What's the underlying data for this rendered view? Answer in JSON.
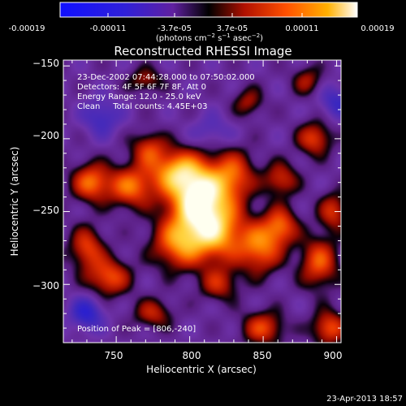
{
  "chart_data": {
    "type": "heatmap",
    "title": "Reconstructed RHESSI Image",
    "xlabel": "Heliocentric X (arcsec)",
    "ylabel": "Heliocentric Y (arcsec)",
    "x_ticks": [
      750,
      800,
      850,
      900
    ],
    "y_ticks": [
      -150,
      -200,
      -250,
      -300
    ],
    "xlim": [
      714,
      903
    ],
    "ylim": [
      -340,
      -146
    ],
    "colorbar": {
      "ticks": [
        "-0.00019",
        "-0.00011",
        "-3.7e-05",
        "3.7e-05",
        "0.00011",
        "0.00019"
      ],
      "range": [
        -0.00019,
        0.00019
      ],
      "units": "(photons cm⁻² s⁻¹ asec⁻²)",
      "units_html": "(photons cm<tspan baseline-shift='super' font-size='7'>−2</tspan> s<tspan baseline-shift='super' font-size='7'>−1</tspan> asec<tspan baseline-shift='super' font-size='7'>−2</tspan>)"
    },
    "annotations": [
      "23-Dec-2002 07:44:28.000 to 07:50:02.000",
      "Detectors: 4F 5F 6F 7F 8F, Att 0",
      "Energy Range: 12.0 - 25.0 keV",
      "Clean     Total counts: 4.45E+03"
    ],
    "peak_label": "Position of Peak = [806,-240]",
    "peak": [
      806,
      -240
    ],
    "sources": [
      {
        "x": 806,
        "y": -240,
        "amp": 1.0,
        "sx": 14,
        "sy": 16
      },
      {
        "x": 790,
        "y": -222,
        "amp": 0.55,
        "sx": 12,
        "sy": 10
      },
      {
        "x": 818,
        "y": -265,
        "amp": 0.65,
        "sx": 14,
        "sy": 14
      },
      {
        "x": 792,
        "y": -272,
        "amp": 0.55,
        "sx": 12,
        "sy": 12
      },
      {
        "x": 830,
        "y": -225,
        "amp": 0.45,
        "sx": 10,
        "sy": 12
      },
      {
        "x": 760,
        "y": -233,
        "amp": 0.55,
        "sx": 11,
        "sy": 10
      },
      {
        "x": 733,
        "y": -230,
        "amp": 0.55,
        "sx": 9,
        "sy": 9
      },
      {
        "x": 745,
        "y": -295,
        "amp": 0.5,
        "sx": 10,
        "sy": 9
      },
      {
        "x": 730,
        "y": -275,
        "amp": 0.45,
        "sx": 8,
        "sy": 10
      },
      {
        "x": 772,
        "y": -207,
        "amp": 0.4,
        "sx": 8,
        "sy": 8
      },
      {
        "x": 848,
        "y": -275,
        "amp": 0.55,
        "sx": 10,
        "sy": 12
      },
      {
        "x": 862,
        "y": -260,
        "amp": 0.5,
        "sx": 8,
        "sy": 9
      },
      {
        "x": 862,
        "y": -228,
        "amp": 0.4,
        "sx": 8,
        "sy": 8
      },
      {
        "x": 888,
        "y": -285,
        "amp": 0.5,
        "sx": 9,
        "sy": 12
      },
      {
        "x": 885,
        "y": -200,
        "amp": 0.45,
        "sx": 8,
        "sy": 8
      },
      {
        "x": 898,
        "y": -250,
        "amp": 0.4,
        "sx": 7,
        "sy": 9
      },
      {
        "x": 840,
        "y": -175,
        "amp": 0.3,
        "sx": 7,
        "sy": 7
      },
      {
        "x": 770,
        "y": -160,
        "amp": 0.3,
        "sx": 8,
        "sy": 6
      },
      {
        "x": 775,
        "y": -320,
        "amp": 0.35,
        "sx": 9,
        "sy": 7
      },
      {
        "x": 850,
        "y": -330,
        "amp": 0.45,
        "sx": 10,
        "sy": 8
      },
      {
        "x": 895,
        "y": -330,
        "amp": 0.5,
        "sx": 8,
        "sy": 8
      },
      {
        "x": 820,
        "y": -300,
        "amp": 0.35,
        "sx": 9,
        "sy": 8
      },
      {
        "x": 880,
        "y": -160,
        "amp": 0.3,
        "sx": 7,
        "sy": 7
      },
      {
        "x": 740,
        "y": -185,
        "amp": -0.3,
        "sx": 9,
        "sy": 9
      },
      {
        "x": 730,
        "y": -320,
        "amp": -0.4,
        "sx": 8,
        "sy": 8
      },
      {
        "x": 900,
        "y": -175,
        "amp": -0.3,
        "sx": 8,
        "sy": 8
      },
      {
        "x": 815,
        "y": -195,
        "amp": -0.2,
        "sx": 10,
        "sy": 8
      }
    ]
  },
  "footer": {
    "timestamp": "23-Apr-2013 18:57"
  }
}
